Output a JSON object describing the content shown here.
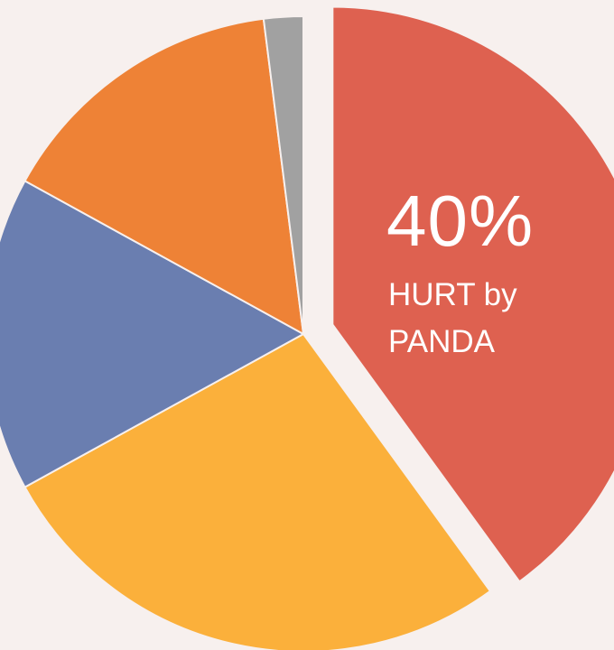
{
  "chart_data": {
    "type": "pie",
    "title": "",
    "slices": [
      {
        "value": 40,
        "color": "#de6150"
      },
      {
        "value": 27,
        "color": "#fbb03b"
      },
      {
        "value": 16,
        "color": "#6a7eb0"
      },
      {
        "value": 15,
        "color": "#ee8236"
      },
      {
        "value": 2,
        "color": "#a1a1a1"
      }
    ],
    "exploded_slice": 0,
    "start_angle_deg": 0,
    "direction": "clockwise",
    "annotation": {
      "percent": "40%",
      "line1": "HURT by",
      "line2": "PANDA"
    }
  }
}
